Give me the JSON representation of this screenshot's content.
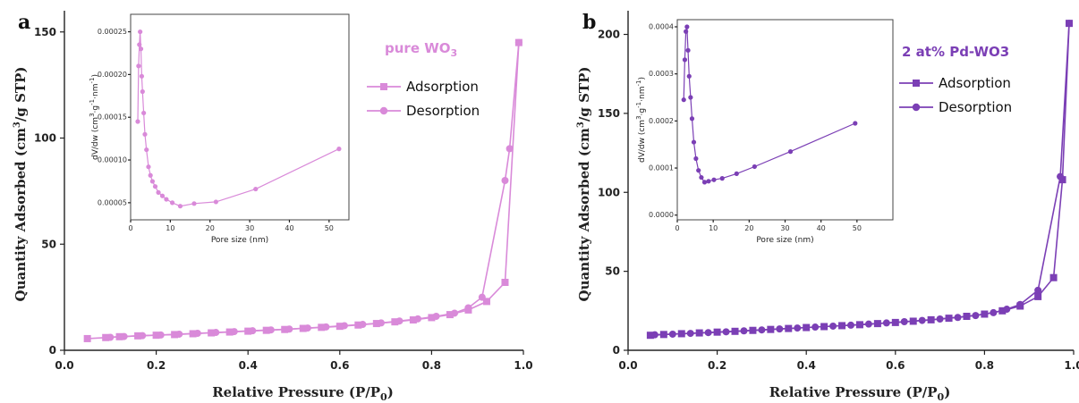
{
  "chart_data": [
    {
      "panel": "a",
      "type": "line",
      "title": "pure WO",
      "title_sub": "3",
      "color": "#d98ad9",
      "xlabel": "Relative Pressure (P/P",
      "xlabel_sub": "0",
      "xlabel_end": ")",
      "ylabel": "Quantity Adsorbed (cm",
      "ylabel_sup": "3",
      "ylabel_end": "/g STP)",
      "xlim": [
        0.0,
        1.0
      ],
      "ylim": [
        0,
        160
      ],
      "xticks": [
        "0.0",
        "0.2",
        "0.4",
        "0.6",
        "0.8",
        "1.0"
      ],
      "yticks": [
        "0",
        "50",
        "100",
        "150"
      ],
      "legend_position": "top-right",
      "series": [
        {
          "name": "Adsorption",
          "marker": "square",
          "points": [
            [
              0.05,
              5.5
            ],
            [
              0.09,
              6.0
            ],
            [
              0.12,
              6.4
            ],
            [
              0.16,
              6.8
            ],
            [
              0.2,
              7.1
            ],
            [
              0.24,
              7.4
            ],
            [
              0.28,
              7.8
            ],
            [
              0.32,
              8.2
            ],
            [
              0.36,
              8.6
            ],
            [
              0.4,
              9.0
            ],
            [
              0.44,
              9.4
            ],
            [
              0.48,
              9.8
            ],
            [
              0.52,
              10.3
            ],
            [
              0.56,
              10.8
            ],
            [
              0.6,
              11.3
            ],
            [
              0.64,
              11.9
            ],
            [
              0.68,
              12.6
            ],
            [
              0.72,
              13.4
            ],
            [
              0.76,
              14.3
            ],
            [
              0.8,
              15.4
            ],
            [
              0.84,
              16.8
            ],
            [
              0.88,
              19.0
            ],
            [
              0.92,
              23.0
            ],
            [
              0.96,
              32.0
            ],
            [
              0.99,
              145.0
            ]
          ]
        },
        {
          "name": "Desorption",
          "marker": "circle",
          "points": [
            [
              0.99,
              145.0
            ],
            [
              0.97,
              95.0
            ],
            [
              0.96,
              80.0
            ],
            [
              0.91,
              25.0
            ],
            [
              0.88,
              20.0
            ],
            [
              0.85,
              17.5
            ],
            [
              0.81,
              16.0
            ],
            [
              0.77,
              14.8
            ],
            [
              0.73,
              13.8
            ],
            [
              0.69,
              12.9
            ],
            [
              0.65,
              12.2
            ],
            [
              0.61,
              11.6
            ],
            [
              0.57,
              11.0
            ],
            [
              0.53,
              10.5
            ],
            [
              0.49,
              10.0
            ],
            [
              0.45,
              9.6
            ],
            [
              0.41,
              9.2
            ],
            [
              0.37,
              8.8
            ],
            [
              0.33,
              8.4
            ],
            [
              0.29,
              8.0
            ],
            [
              0.25,
              7.6
            ],
            [
              0.21,
              7.2
            ],
            [
              0.17,
              6.9
            ],
            [
              0.13,
              6.5
            ],
            [
              0.1,
              6.1
            ]
          ]
        }
      ],
      "inset": {
        "type": "line",
        "xlabel": "Pore size (nm)",
        "ylabel": "dV/dw (cm",
        "ylabel_sup": "3",
        "ylabel_mid": "·g",
        "ylabel_sup2": "-1",
        "ylabel_mid2": "·nm",
        "ylabel_sup3": "-1",
        "ylabel_end": ")",
        "xlim": [
          0,
          55
        ],
        "ylim": [
          3e-05,
          0.00026
        ],
        "xticks": [
          "0",
          "10",
          "20",
          "30",
          "40",
          "50"
        ],
        "xtick_values": [
          0,
          10,
          20,
          30,
          40,
          50
        ],
        "yticks": [
          "0.00005",
          "0.00010",
          "0.00015",
          "0.00020",
          "0.00025"
        ],
        "ytick_values": [
          5e-05,
          0.0001,
          0.00015,
          0.0002,
          0.00025
        ],
        "points": [
          [
            1.8,
            0.000145
          ],
          [
            2.0,
            0.00021
          ],
          [
            2.2,
            0.000235
          ],
          [
            2.4,
            0.00025
          ],
          [
            2.6,
            0.00023
          ],
          [
            2.8,
            0.000198
          ],
          [
            3.0,
            0.00018
          ],
          [
            3.3,
            0.000155
          ],
          [
            3.6,
            0.00013
          ],
          [
            4.0,
            0.000112
          ],
          [
            4.5,
            9.2e-05
          ],
          [
            5.0,
            8.2e-05
          ],
          [
            5.5,
            7.5e-05
          ],
          [
            6.2,
            6.9e-05
          ],
          [
            7.0,
            6.2e-05
          ],
          [
            8.0,
            5.8e-05
          ],
          [
            9.0,
            5.4e-05
          ],
          [
            10.5,
            5e-05
          ],
          [
            12.5,
            4.6e-05
          ],
          [
            16.0,
            4.9e-05
          ],
          [
            21.5,
            5.1e-05
          ],
          [
            31.5,
            6.6e-05
          ],
          [
            52.5,
            0.000113
          ]
        ]
      }
    },
    {
      "panel": "b",
      "type": "line",
      "title": "2 at% Pd-WO3",
      "color": "#7b3fb5",
      "xlabel": "Relative Pressure (P/P",
      "xlabel_sub": "0",
      "xlabel_end": ")",
      "ylabel": "Quantity Adsorbed (cm",
      "ylabel_sup": "3",
      "ylabel_end": "/g STP)",
      "xlim": [
        0.0,
        1.0
      ],
      "ylim": [
        0,
        215
      ],
      "xticks": [
        "0.0",
        "0.2",
        "0.4",
        "0.6",
        "0.8",
        "1.0"
      ],
      "yticks": [
        "0",
        "50",
        "100",
        "150",
        "200"
      ],
      "legend_position": "top-right",
      "series": [
        {
          "name": "Adsorption",
          "marker": "square",
          "points": [
            [
              0.05,
              9.5
            ],
            [
              0.08,
              10.0
            ],
            [
              0.12,
              10.5
            ],
            [
              0.16,
              11.0
            ],
            [
              0.2,
              11.5
            ],
            [
              0.24,
              12.0
            ],
            [
              0.28,
              12.6
            ],
            [
              0.32,
              13.2
            ],
            [
              0.36,
              13.8
            ],
            [
              0.4,
              14.4
            ],
            [
              0.44,
              15.0
            ],
            [
              0.48,
              15.6
            ],
            [
              0.52,
              16.2
            ],
            [
              0.56,
              16.9
            ],
            [
              0.6,
              17.6
            ],
            [
              0.64,
              18.4
            ],
            [
              0.68,
              19.3
            ],
            [
              0.72,
              20.3
            ],
            [
              0.76,
              21.5
            ],
            [
              0.8,
              22.9
            ],
            [
              0.84,
              25.0
            ],
            [
              0.88,
              28.0
            ],
            [
              0.92,
              34.0
            ],
            [
              0.955,
              46.0
            ],
            [
              0.975,
              108.0
            ],
            [
              0.99,
              207.0
            ]
          ]
        },
        {
          "name": "Desorption",
          "marker": "circle",
          "points": [
            [
              0.99,
              207.0
            ],
            [
              0.97,
              110.0
            ],
            [
              0.92,
              38.0
            ],
            [
              0.88,
              29.0
            ],
            [
              0.85,
              26.0
            ],
            [
              0.82,
              23.8
            ],
            [
              0.78,
              22.0
            ],
            [
              0.74,
              20.8
            ],
            [
              0.7,
              19.8
            ],
            [
              0.66,
              18.9
            ],
            [
              0.62,
              18.1
            ],
            [
              0.58,
              17.3
            ],
            [
              0.54,
              16.6
            ],
            [
              0.5,
              15.9
            ],
            [
              0.46,
              15.3
            ],
            [
              0.42,
              14.7
            ],
            [
              0.38,
              14.1
            ],
            [
              0.34,
              13.5
            ],
            [
              0.3,
              12.9
            ],
            [
              0.26,
              12.3
            ],
            [
              0.22,
              11.7
            ],
            [
              0.18,
              11.2
            ],
            [
              0.14,
              10.7
            ],
            [
              0.1,
              10.2
            ],
            [
              0.06,
              9.8
            ]
          ]
        }
      ],
      "inset": {
        "type": "line",
        "xlabel": "Pore size (nm)",
        "ylabel": "dV/dw (cm",
        "ylabel_sup": "3",
        "ylabel_mid": "·g",
        "ylabel_sup2": "-1",
        "ylabel_mid2": "·nm",
        "ylabel_sup3": "-1",
        "ylabel_end": ")",
        "xlim": [
          0,
          60
        ],
        "ylim": [
          -1e-05,
          0.0004
        ],
        "xticks": [
          "0",
          "10",
          "20",
          "30",
          "40",
          "50"
        ],
        "xtick_values": [
          0,
          10,
          20,
          30,
          40,
          50
        ],
        "yticks": [
          "0.0000",
          "0.0001",
          "0.0002",
          "0.0003",
          "0.0004"
        ],
        "ytick_values": [
          0.0,
          0.0001,
          0.0002,
          0.0003,
          0.0004
        ],
        "points": [
          [
            1.8,
            0.000245
          ],
          [
            2.1,
            0.00033
          ],
          [
            2.4,
            0.00039
          ],
          [
            2.7,
            0.0004
          ],
          [
            3.0,
            0.00035
          ],
          [
            3.3,
            0.000295
          ],
          [
            3.7,
            0.00025
          ],
          [
            4.1,
            0.000205
          ],
          [
            4.6,
            0.000155
          ],
          [
            5.2,
            0.00012
          ],
          [
            5.9,
            9.5e-05
          ],
          [
            6.7,
            8e-05
          ],
          [
            7.6,
            7e-05
          ],
          [
            8.7,
            7.2e-05
          ],
          [
            10.2,
            7.5e-05
          ],
          [
            12.5,
            7.8e-05
          ],
          [
            16.5,
            8.8e-05
          ],
          [
            21.5,
            0.000103
          ],
          [
            31.5,
            0.000135
          ],
          [
            49.5,
            0.000195
          ]
        ]
      }
    }
  ]
}
